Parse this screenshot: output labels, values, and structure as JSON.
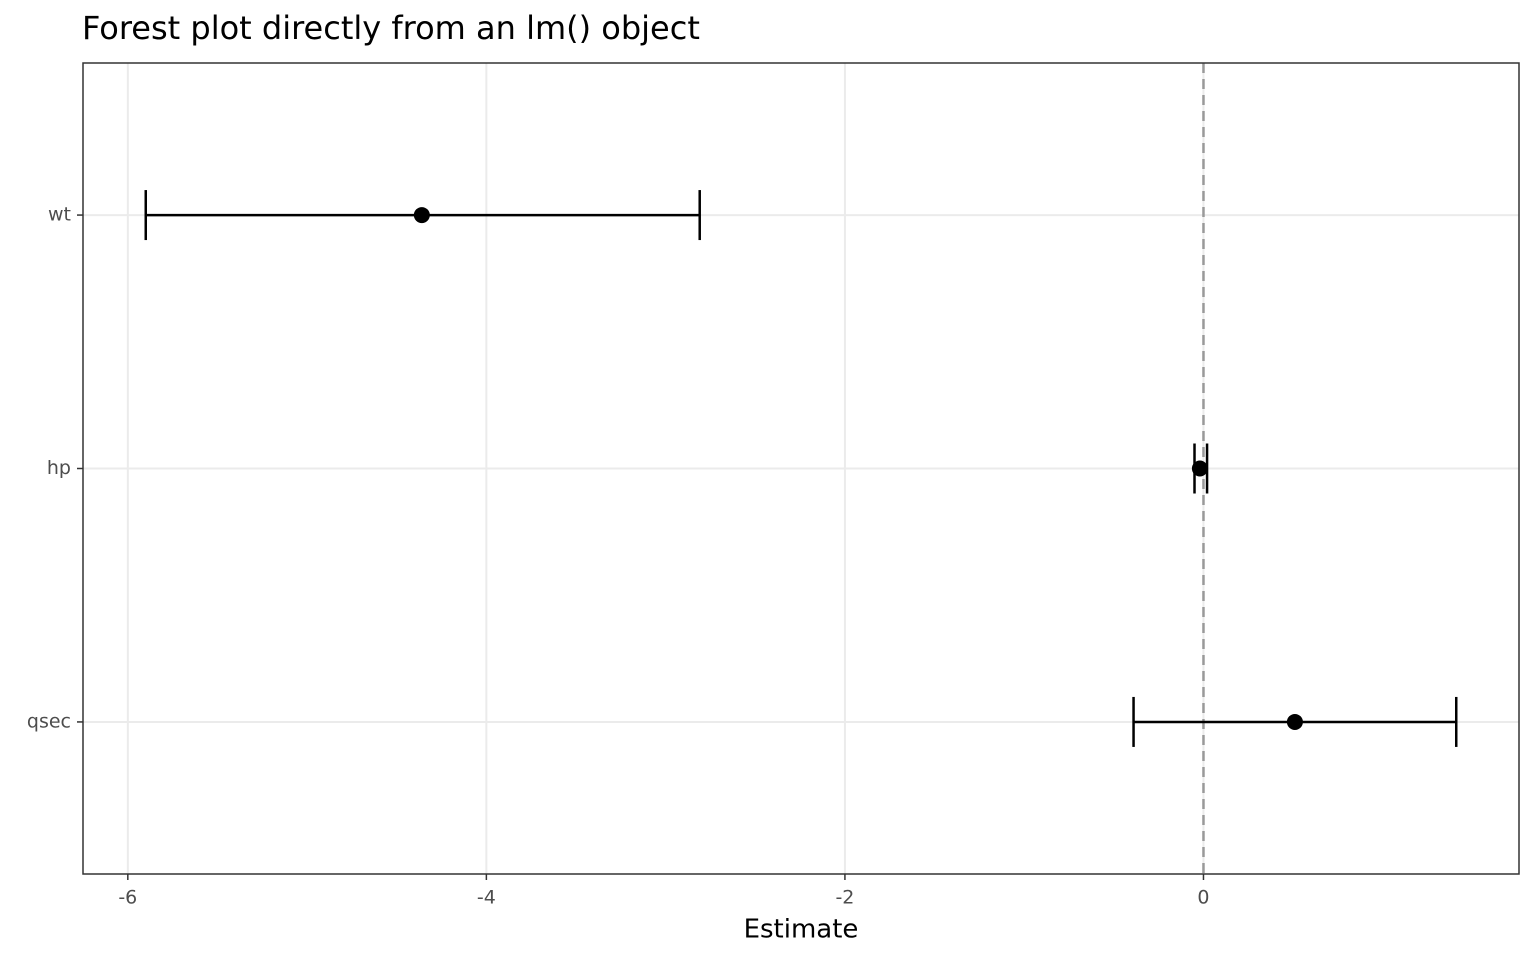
{
  "chart_data": {
    "type": "forest",
    "title": "Forest plot directly from an lm() object",
    "x_label": "Estimate",
    "categories": [
      "wt",
      "hp",
      "qsec"
    ],
    "values": [
      -4.36,
      -0.02,
      0.51
    ],
    "lower": [
      -5.9,
      -0.05,
      -0.39
    ],
    "upper": [
      -2.81,
      0.02,
      1.41
    ],
    "color": "#000000",
    "xlim": [
      -6.25,
      1.76
    ],
    "xticks": [
      -6,
      -4,
      -2,
      0
    ],
    "reference_line": 0,
    "grid": true
  }
}
